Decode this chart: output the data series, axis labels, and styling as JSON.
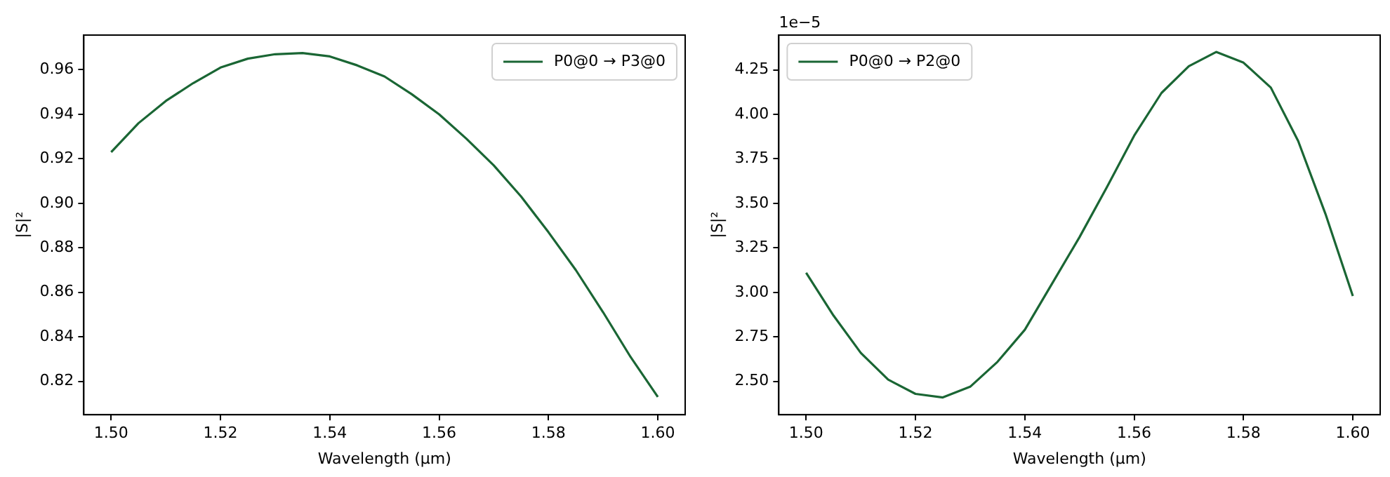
{
  "chart_data": [
    {
      "type": "line",
      "xlabel": "Wavelength (µm)",
      "ylabel": "|S|²",
      "legend": "top right",
      "grid": false,
      "x": [
        1.5,
        1.505,
        1.51,
        1.515,
        1.52,
        1.525,
        1.53,
        1.535,
        1.54,
        1.545,
        1.55,
        1.555,
        1.56,
        1.565,
        1.57,
        1.575,
        1.58,
        1.585,
        1.59,
        1.595,
        1.6
      ],
      "series": [
        {
          "name": "P0@0 → P3@0",
          "color": "#1a6634",
          "values": [
            0.923,
            0.936,
            0.946,
            0.954,
            0.961,
            0.965,
            0.967,
            0.9675,
            0.966,
            0.962,
            0.957,
            0.949,
            0.94,
            0.929,
            0.917,
            0.903,
            0.887,
            0.87,
            0.851,
            0.831,
            0.813
          ]
        }
      ],
      "xlim": [
        1.495,
        1.605
      ],
      "xticks": [
        {
          "value": 1.5,
          "label": "1.50"
        },
        {
          "value": 1.52,
          "label": "1.52"
        },
        {
          "value": 1.54,
          "label": "1.54"
        },
        {
          "value": 1.56,
          "label": "1.56"
        },
        {
          "value": 1.58,
          "label": "1.58"
        },
        {
          "value": 1.6,
          "label": "1.60"
        }
      ],
      "ylim": [
        0.805,
        0.9756
      ],
      "yticks": [
        {
          "value": 0.82,
          "label": "0.82"
        },
        {
          "value": 0.84,
          "label": "0.84"
        },
        {
          "value": 0.86,
          "label": "0.86"
        },
        {
          "value": 0.88,
          "label": "0.88"
        },
        {
          "value": 0.9,
          "label": "0.90"
        },
        {
          "value": 0.92,
          "label": "0.92"
        },
        {
          "value": 0.94,
          "label": "0.94"
        },
        {
          "value": 0.96,
          "label": "0.96"
        }
      ]
    },
    {
      "type": "line",
      "xlabel": "Wavelength (µm)",
      "ylabel": "|S|²",
      "legend": "top left",
      "grid": false,
      "annotations": [
        "1e−5"
      ],
      "x": [
        1.5,
        1.505,
        1.51,
        1.515,
        1.52,
        1.525,
        1.53,
        1.535,
        1.54,
        1.545,
        1.55,
        1.555,
        1.56,
        1.565,
        1.57,
        1.575,
        1.58,
        1.585,
        1.59,
        1.595,
        1.6
      ],
      "series": [
        {
          "name": "P0@0 → P2@0",
          "color": "#1a6634",
          "values": [
            3.11,
            2.87,
            2.66,
            2.51,
            2.43,
            2.41,
            2.47,
            2.61,
            2.79,
            3.05,
            3.31,
            3.59,
            3.88,
            4.12,
            4.27,
            4.35,
            4.29,
            4.15,
            3.85,
            3.44,
            2.98
          ]
        }
      ],
      "xlim": [
        1.495,
        1.605
      ],
      "xticks": [
        {
          "value": 1.5,
          "label": "1.50"
        },
        {
          "value": 1.52,
          "label": "1.52"
        },
        {
          "value": 1.54,
          "label": "1.54"
        },
        {
          "value": 1.56,
          "label": "1.56"
        },
        {
          "value": 1.58,
          "label": "1.58"
        },
        {
          "value": 1.6,
          "label": "1.60"
        }
      ],
      "ylim": [
        2.313,
        4.445
      ],
      "yticks": [
        {
          "value": 2.5,
          "label": "2.50"
        },
        {
          "value": 2.75,
          "label": "2.75"
        },
        {
          "value": 3.0,
          "label": "3.00"
        },
        {
          "value": 3.25,
          "label": "3.25"
        },
        {
          "value": 3.5,
          "label": "3.50"
        },
        {
          "value": 3.75,
          "label": "3.75"
        },
        {
          "value": 4.0,
          "label": "4.00"
        },
        {
          "value": 4.25,
          "label": "4.25"
        }
      ]
    }
  ]
}
